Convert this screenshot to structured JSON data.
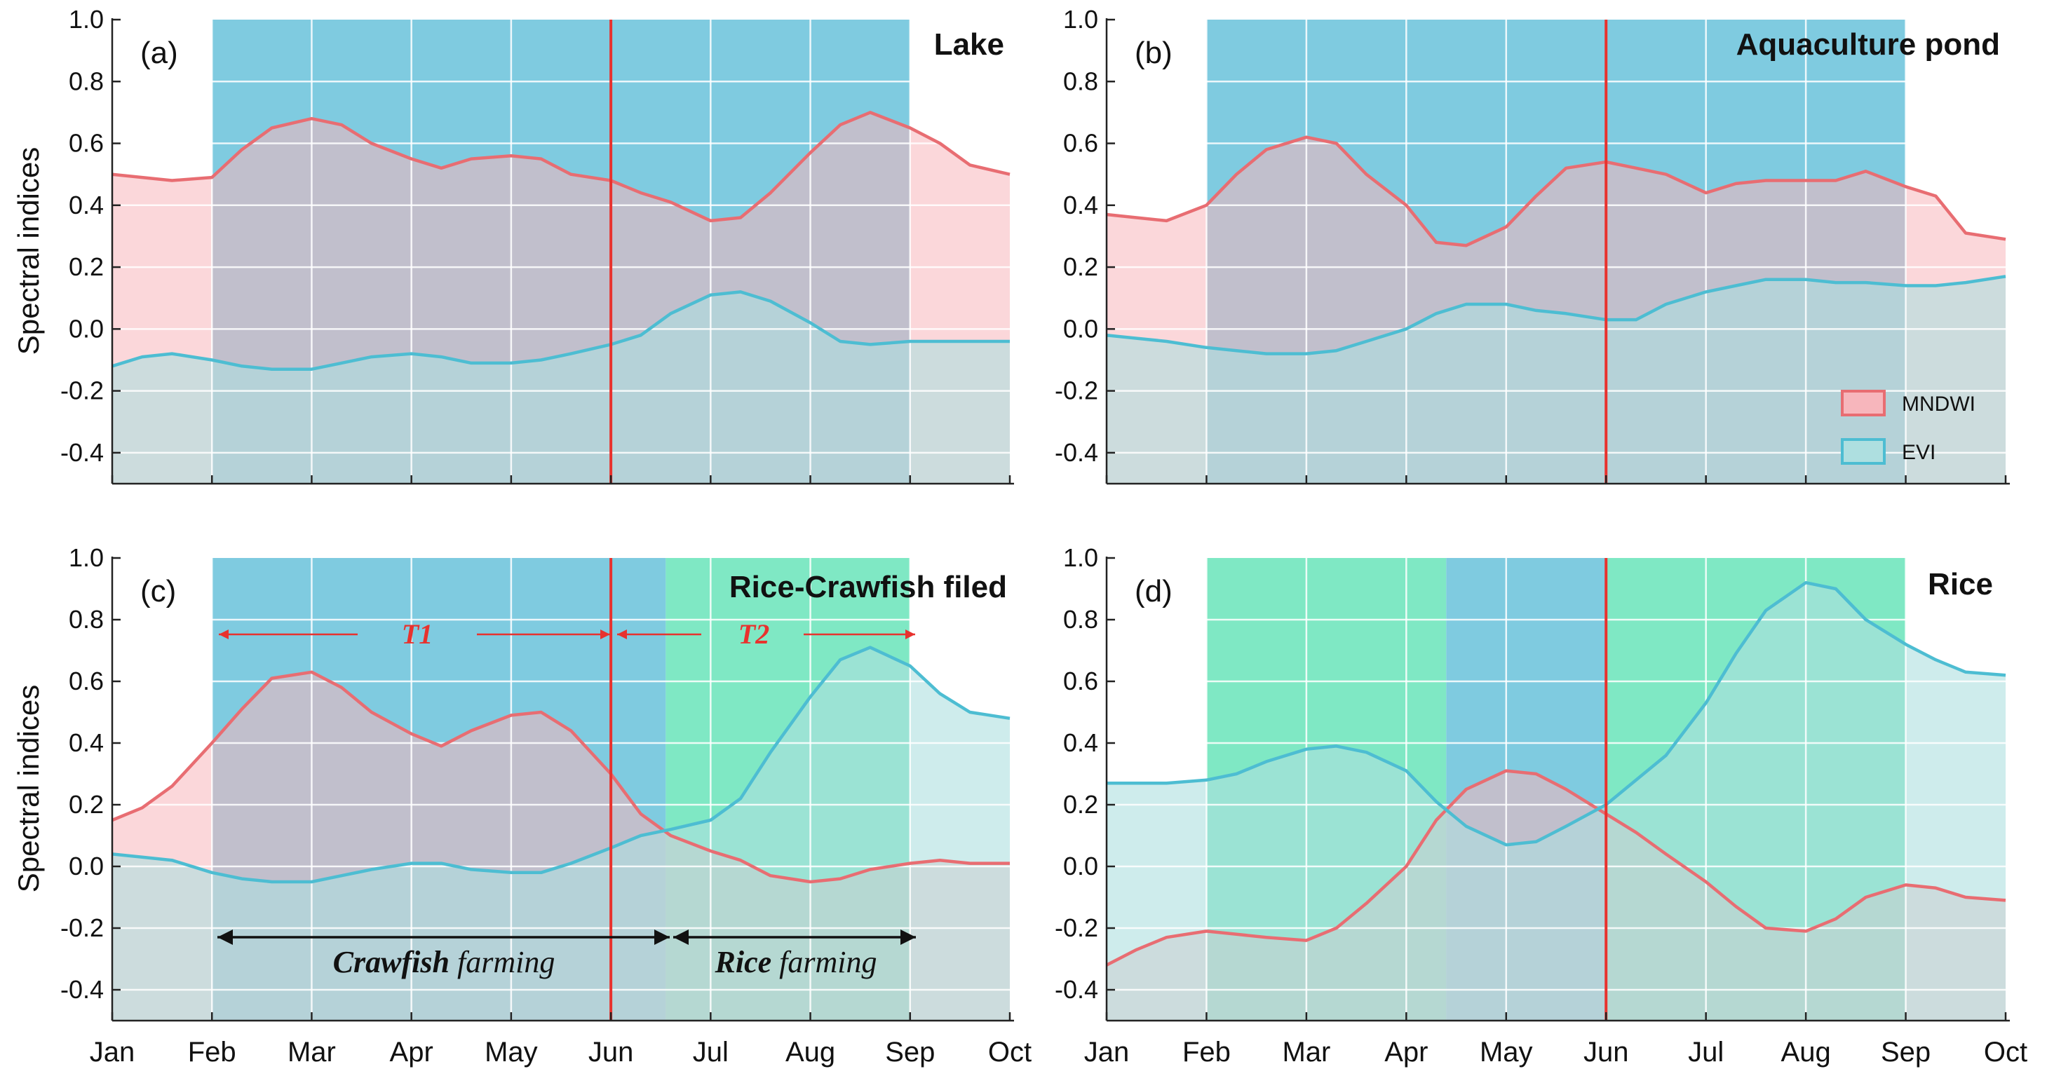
{
  "colors": {
    "mndwi_line": "#e86d72",
    "mndwi_fill": "#f7b6bc",
    "evi_line": "#4dbdd2",
    "evi_fill": "#aedfe0",
    "water_period": "#7fcbe0",
    "crop_period": "#7fe8c4",
    "divider": "#e8322e",
    "arrow_red": "#e8322e"
  },
  "shared": {
    "ylabel": "Spectral indices",
    "months": [
      "Jan",
      "Feb",
      "Mar",
      "Apr",
      "May",
      "Jun",
      "Jul",
      "Aug",
      "Sep",
      "Oct"
    ],
    "yticks": [
      "1.0",
      "0.8",
      "0.6",
      "0.4",
      "0.2",
      "0.0",
      "-0.2",
      "-0.4"
    ],
    "legend": [
      {
        "name": "MNDWI",
        "color": "#e86d72"
      },
      {
        "name": "EVI",
        "color": "#4dbdd2"
      }
    ]
  },
  "chart_data": [
    {
      "type": "area",
      "panel": "(a)",
      "title": "Lake",
      "x_unit": "month",
      "xlim": [
        1,
        10
      ],
      "ylim": [
        -0.5,
        1.0
      ],
      "grid": true,
      "shaded_periods": [
        {
          "from": 2,
          "to": 9,
          "kind": "water"
        }
      ],
      "divider_at": 6,
      "series": [
        {
          "name": "MNDWI",
          "x": [
            1,
            1.3,
            1.6,
            2,
            2.3,
            2.6,
            3,
            3.3,
            3.6,
            4,
            4.3,
            4.6,
            5,
            5.3,
            5.6,
            6,
            6.3,
            6.6,
            7,
            7.3,
            7.6,
            8,
            8.3,
            8.6,
            9,
            9.3,
            9.6,
            10
          ],
          "values": [
            0.5,
            0.49,
            0.48,
            0.49,
            0.58,
            0.65,
            0.68,
            0.66,
            0.6,
            0.55,
            0.52,
            0.55,
            0.56,
            0.55,
            0.5,
            0.48,
            0.44,
            0.41,
            0.35,
            0.36,
            0.44,
            0.57,
            0.66,
            0.7,
            0.65,
            0.6,
            0.53,
            0.5
          ]
        },
        {
          "name": "EVI",
          "x": [
            1,
            1.3,
            1.6,
            2,
            2.3,
            2.6,
            3,
            3.3,
            3.6,
            4,
            4.3,
            4.6,
            5,
            5.3,
            5.6,
            6,
            6.3,
            6.6,
            7,
            7.3,
            7.6,
            8,
            8.3,
            8.6,
            9,
            9.3,
            9.6,
            10
          ],
          "values": [
            -0.12,
            -0.09,
            -0.08,
            -0.1,
            -0.12,
            -0.13,
            -0.13,
            -0.11,
            -0.09,
            -0.08,
            -0.09,
            -0.11,
            -0.11,
            -0.1,
            -0.08,
            -0.05,
            -0.02,
            0.05,
            0.11,
            0.12,
            0.09,
            0.02,
            -0.04,
            -0.05,
            -0.04,
            -0.04,
            -0.04,
            -0.04
          ]
        }
      ]
    },
    {
      "type": "area",
      "panel": "(b)",
      "title": "Aquaculture pond",
      "x_unit": "month",
      "xlim": [
        1,
        10
      ],
      "ylim": [
        -0.5,
        1.0
      ],
      "grid": true,
      "legend": "bottom-right",
      "shaded_periods": [
        {
          "from": 2,
          "to": 9,
          "kind": "water"
        }
      ],
      "divider_at": 6,
      "series": [
        {
          "name": "MNDWI",
          "x": [
            1,
            1.3,
            1.6,
            2,
            2.3,
            2.6,
            3,
            3.3,
            3.6,
            4,
            4.3,
            4.6,
            5,
            5.3,
            5.6,
            6,
            6.3,
            6.6,
            7,
            7.3,
            7.6,
            8,
            8.3,
            8.6,
            9,
            9.3,
            9.6,
            10
          ],
          "values": [
            0.37,
            0.36,
            0.35,
            0.4,
            0.5,
            0.58,
            0.62,
            0.6,
            0.5,
            0.4,
            0.28,
            0.27,
            0.33,
            0.43,
            0.52,
            0.54,
            0.52,
            0.5,
            0.44,
            0.47,
            0.48,
            0.48,
            0.48,
            0.51,
            0.46,
            0.43,
            0.31,
            0.29
          ]
        },
        {
          "name": "EVI",
          "x": [
            1,
            1.3,
            1.6,
            2,
            2.3,
            2.6,
            3,
            3.3,
            3.6,
            4,
            4.3,
            4.6,
            5,
            5.3,
            5.6,
            6,
            6.3,
            6.6,
            7,
            7.3,
            7.6,
            8,
            8.3,
            8.6,
            9,
            9.3,
            9.6,
            10
          ],
          "values": [
            -0.02,
            -0.03,
            -0.04,
            -0.06,
            -0.07,
            -0.08,
            -0.08,
            -0.07,
            -0.04,
            0.0,
            0.05,
            0.08,
            0.08,
            0.06,
            0.05,
            0.03,
            0.03,
            0.08,
            0.12,
            0.14,
            0.16,
            0.16,
            0.15,
            0.15,
            0.14,
            0.14,
            0.15,
            0.17
          ]
        }
      ]
    },
    {
      "type": "area",
      "panel": "(c)",
      "title": "Rice-Crawfish filed",
      "x_unit": "month",
      "xlim": [
        1,
        10
      ],
      "ylim": [
        -0.5,
        1.0
      ],
      "grid": true,
      "shaded_periods": [
        {
          "from": 2,
          "to": 6.55,
          "kind": "water"
        },
        {
          "from": 6.55,
          "to": 9,
          "kind": "crop"
        }
      ],
      "divider_at": 6,
      "annotations": {
        "t1": "T1",
        "t2": "T2",
        "crawfish_bold": "Crawfish",
        "crawfish_rest": " farming",
        "rice_bold": "Rice",
        "rice_rest": " farming"
      },
      "series": [
        {
          "name": "MNDWI",
          "x": [
            1,
            1.3,
            1.6,
            2,
            2.3,
            2.6,
            3,
            3.3,
            3.6,
            4,
            4.3,
            4.6,
            5,
            5.3,
            5.6,
            6,
            6.3,
            6.6,
            7,
            7.3,
            7.6,
            8,
            8.3,
            8.6,
            9,
            9.3,
            9.6,
            10
          ],
          "values": [
            0.15,
            0.19,
            0.26,
            0.4,
            0.51,
            0.61,
            0.63,
            0.58,
            0.5,
            0.43,
            0.39,
            0.44,
            0.49,
            0.5,
            0.44,
            0.3,
            0.17,
            0.1,
            0.05,
            0.02,
            -0.03,
            -0.05,
            -0.04,
            -0.01,
            0.01,
            0.02,
            0.01,
            0.01
          ]
        },
        {
          "name": "EVI",
          "x": [
            1,
            1.3,
            1.6,
            2,
            2.3,
            2.6,
            3,
            3.3,
            3.6,
            4,
            4.3,
            4.6,
            5,
            5.3,
            5.6,
            6,
            6.3,
            6.6,
            7,
            7.3,
            7.6,
            8,
            8.3,
            8.6,
            9,
            9.3,
            9.6,
            10
          ],
          "values": [
            0.04,
            0.03,
            0.02,
            -0.02,
            -0.04,
            -0.05,
            -0.05,
            -0.03,
            -0.01,
            0.01,
            0.01,
            -0.01,
            -0.02,
            -0.02,
            0.01,
            0.06,
            0.1,
            0.12,
            0.15,
            0.22,
            0.37,
            0.55,
            0.67,
            0.71,
            0.65,
            0.56,
            0.5,
            0.48
          ]
        }
      ]
    },
    {
      "type": "area",
      "panel": "(d)",
      "title": "Rice",
      "x_unit": "month",
      "xlim": [
        1,
        10
      ],
      "ylim": [
        -0.5,
        1.0
      ],
      "grid": true,
      "shaded_periods": [
        {
          "from": 2,
          "to": 4.4,
          "kind": "crop"
        },
        {
          "from": 4.4,
          "to": 6,
          "kind": "water"
        },
        {
          "from": 6,
          "to": 9,
          "kind": "crop"
        }
      ],
      "divider_at": 6,
      "series": [
        {
          "name": "MNDWI",
          "x": [
            1,
            1.3,
            1.6,
            2,
            2.3,
            2.6,
            3,
            3.3,
            3.6,
            4,
            4.3,
            4.6,
            5,
            5.3,
            5.6,
            6,
            6.3,
            6.6,
            7,
            7.3,
            7.6,
            8,
            8.3,
            8.6,
            9,
            9.3,
            9.6,
            10
          ],
          "values": [
            -0.32,
            -0.27,
            -0.23,
            -0.21,
            -0.22,
            -0.23,
            -0.24,
            -0.2,
            -0.12,
            0.0,
            0.15,
            0.25,
            0.31,
            0.3,
            0.25,
            0.17,
            0.11,
            0.04,
            -0.05,
            -0.13,
            -0.2,
            -0.21,
            -0.17,
            -0.1,
            -0.06,
            -0.07,
            -0.1,
            -0.11
          ]
        },
        {
          "name": "EVI",
          "x": [
            1,
            1.3,
            1.6,
            2,
            2.3,
            2.6,
            3,
            3.3,
            3.6,
            4,
            4.3,
            4.6,
            5,
            5.3,
            5.6,
            6,
            6.3,
            6.6,
            7,
            7.3,
            7.6,
            8,
            8.3,
            8.6,
            9,
            9.3,
            9.6,
            10
          ],
          "values": [
            0.27,
            0.27,
            0.27,
            0.28,
            0.3,
            0.34,
            0.38,
            0.39,
            0.37,
            0.31,
            0.21,
            0.13,
            0.07,
            0.08,
            0.13,
            0.2,
            0.28,
            0.36,
            0.53,
            0.69,
            0.83,
            0.92,
            0.9,
            0.8,
            0.72,
            0.67,
            0.63,
            0.62
          ]
        }
      ]
    }
  ]
}
